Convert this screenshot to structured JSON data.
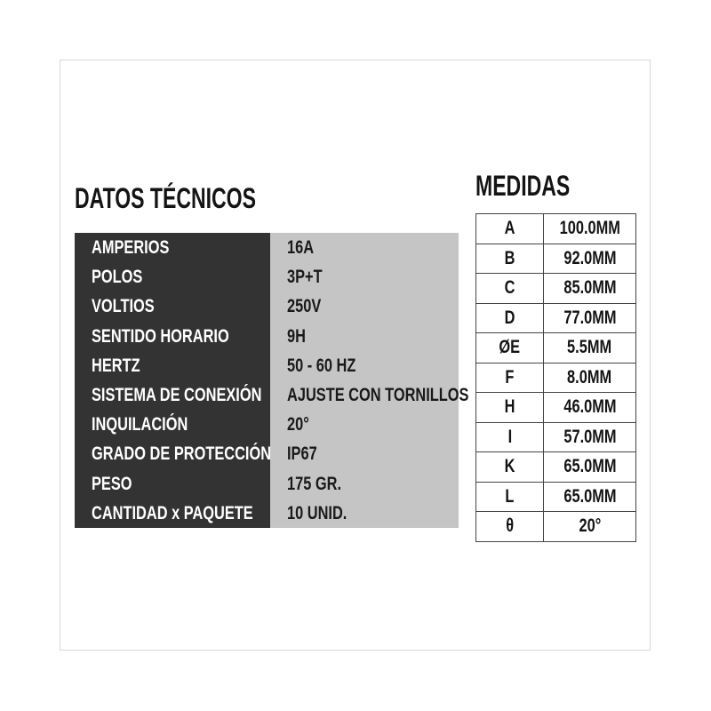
{
  "datos_tecnicos": {
    "title": "DATOS TÉCNICOS",
    "rows": [
      {
        "label": "AMPERIOS",
        "value": "16A"
      },
      {
        "label": "POLOS",
        "value": "3P+T"
      },
      {
        "label": "VOLTIOS",
        "value": "250V"
      },
      {
        "label": "SENTIDO HORARIO",
        "value": "9H"
      },
      {
        "label": "HERTZ",
        "value": "50 - 60 HZ"
      },
      {
        "label": "SISTEMA DE CONEXIÓN",
        "value": "AJUSTE CON TORNILLOS"
      },
      {
        "label": "INQUILACIÓN",
        "value": "20°"
      },
      {
        "label": "GRADO DE PROTECCIÓN",
        "value": "IP67"
      },
      {
        "label": "PESO",
        "value": "175 GR."
      },
      {
        "label": "CANTIDAD x PAQUETE",
        "value": "10 UNID."
      }
    ]
  },
  "medidas": {
    "title": "MEDIDAS",
    "rows": [
      {
        "key": "A",
        "value": "100.0MM"
      },
      {
        "key": "B",
        "value": "92.0MM"
      },
      {
        "key": "C",
        "value": "85.0MM"
      },
      {
        "key": "D",
        "value": "77.0MM"
      },
      {
        "key": "ØE",
        "value": "5.5MM"
      },
      {
        "key": "F",
        "value": "8.0MM"
      },
      {
        "key": "H",
        "value": "46.0MM"
      },
      {
        "key": "I",
        "value": "57.0MM"
      },
      {
        "key": "K",
        "value": "65.0MM"
      },
      {
        "key": "L",
        "value": "65.0MM"
      },
      {
        "key": "θ",
        "value": "20°"
      }
    ]
  },
  "colors": {
    "label_bg": "#333333",
    "value_bg": "#c6c5c6",
    "text": "#141414"
  }
}
